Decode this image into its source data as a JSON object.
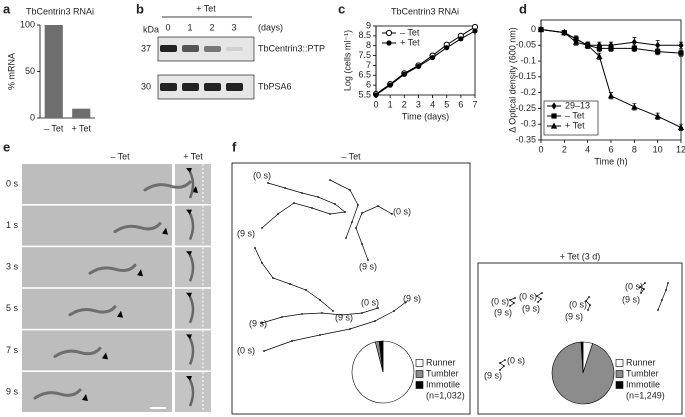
{
  "panel_labels": [
    "a",
    "b",
    "c",
    "d",
    "e",
    "f"
  ],
  "chart_data": [
    {
      "type": "bar",
      "title": "TbCentrin3 RNAi",
      "y_label": "% mRNA",
      "categories": [
        "– Tet",
        "+ Tet"
      ],
      "values": [
        100,
        10
      ],
      "color": "#6e6e6e",
      "ylim": [
        0,
        100
      ],
      "yticks": [
        0,
        50,
        100
      ]
    },
    {
      "type": "line",
      "title": "TbCentrin3 RNAi",
      "x_label": "Time (days)",
      "y_label": "Log (cells ml⁻¹)",
      "x": [
        0,
        1,
        2,
        3,
        4,
        5,
        6,
        7
      ],
      "series": [
        {
          "name": "– Tet",
          "color": "#000000",
          "marker": "circle-open",
          "values": [
            5.55,
            6.05,
            6.6,
            7.0,
            7.5,
            8.05,
            8.5,
            8.95
          ]
        },
        {
          "name": "+ Tet",
          "color": "#000000",
          "marker": "circle",
          "values": [
            5.5,
            6.0,
            6.55,
            6.95,
            7.4,
            7.9,
            8.35,
            8.75
          ]
        }
      ],
      "xlim": [
        0,
        7
      ],
      "ylim": [
        5.5,
        9
      ],
      "xticks": [
        0,
        1,
        2,
        3,
        4,
        5,
        6,
        7
      ],
      "yticks": [
        5.5,
        6,
        6.5,
        7,
        7.5,
        8,
        8.5,
        9
      ],
      "legend": "top-left"
    },
    {
      "type": "line",
      "x_label": "Time (h)",
      "y_label": "Δ Optical density (600 nm)",
      "x": [
        0,
        2,
        3,
        4,
        5,
        6,
        8,
        10,
        12
      ],
      "series": [
        {
          "name": "29–13",
          "color": "#000000",
          "marker": "diamond",
          "values": [
            0,
            -0.01,
            -0.03,
            -0.05,
            -0.05,
            -0.05,
            -0.04,
            -0.05,
            -0.05
          ],
          "errors": [
            0,
            0.005,
            0.01,
            0.01,
            0.01,
            0.01,
            0.015,
            0.015,
            0.01
          ]
        },
        {
          "name": "– Tet",
          "color": "#000000",
          "marker": "square",
          "values": [
            0,
            -0.01,
            -0.03,
            -0.05,
            -0.06,
            -0.06,
            -0.06,
            -0.07,
            -0.075
          ],
          "errors": [
            0,
            0.005,
            0.01,
            0.01,
            0.01,
            0.01,
            0.01,
            0.01,
            0.01
          ]
        },
        {
          "name": "+ Tet",
          "color": "#000000",
          "marker": "triangle",
          "values": [
            0,
            -0.01,
            -0.04,
            -0.05,
            -0.085,
            -0.21,
            -0.245,
            -0.275,
            -0.31
          ],
          "errors": [
            0,
            0.005,
            0.01,
            0.01,
            0.01,
            0.01,
            0.01,
            0.01,
            0.01
          ]
        }
      ],
      "xlim": [
        0,
        12
      ],
      "ylim": [
        -0.35,
        0.03
      ],
      "xticks": [
        0,
        2,
        4,
        6,
        8,
        10,
        12
      ],
      "yticks": [
        0,
        -0.05,
        -0.1,
        -0.15,
        -0.2,
        -0.25,
        -0.3,
        -0.35
      ],
      "legend": "bottom-left"
    },
    {
      "type": "pie",
      "categories": [
        "Runner",
        "Tumbler",
        "Immotile"
      ],
      "values": [
        96,
        2,
        2
      ],
      "colors": [
        "#ffffff",
        "#8c8c8c",
        "#000000"
      ],
      "sample_size": "(n=1,032)"
    },
    {
      "type": "pie",
      "categories": [
        "Runner",
        "Tumbler",
        "Immotile"
      ],
      "values": [
        5,
        94,
        1
      ],
      "colors": [
        "#ffffff",
        "#8c8c8c",
        "#000000"
      ],
      "sample_size": "(n=1,249)"
    }
  ],
  "blot": {
    "header": "+ Tet",
    "kda_label": "kDa",
    "lanes": [
      "0",
      "1",
      "2",
      "3"
    ],
    "lanes_unit": "(days)",
    "markers": [
      37,
      30
    ],
    "proteins": [
      "TbCentrin3::PTP",
      "TbPSA6"
    ]
  },
  "micrographs": {
    "columns": [
      "– Tet",
      "+ Tet"
    ],
    "times": [
      "0 s",
      "1 s",
      "3 s",
      "5 s",
      "7 s",
      "9 s"
    ]
  },
  "tracks": {
    "minus": {
      "title": "– Tet",
      "labels": [
        "(0 s)",
        "(0 s)",
        "(9 s)",
        "(9 s)",
        "(9 s)",
        "(0 s)",
        "(9 s)",
        "(9 s)",
        "(0 s)"
      ]
    },
    "plus": {
      "title": "+ Tet (3 d)",
      "labels": [
        "(0 s)",
        "(9 s)",
        "(0 s)",
        "(9 s)",
        "(0 s)",
        "(9 s)",
        "(0 s)",
        "(9 s)",
        "(0 s)",
        "(9 s)"
      ]
    }
  }
}
